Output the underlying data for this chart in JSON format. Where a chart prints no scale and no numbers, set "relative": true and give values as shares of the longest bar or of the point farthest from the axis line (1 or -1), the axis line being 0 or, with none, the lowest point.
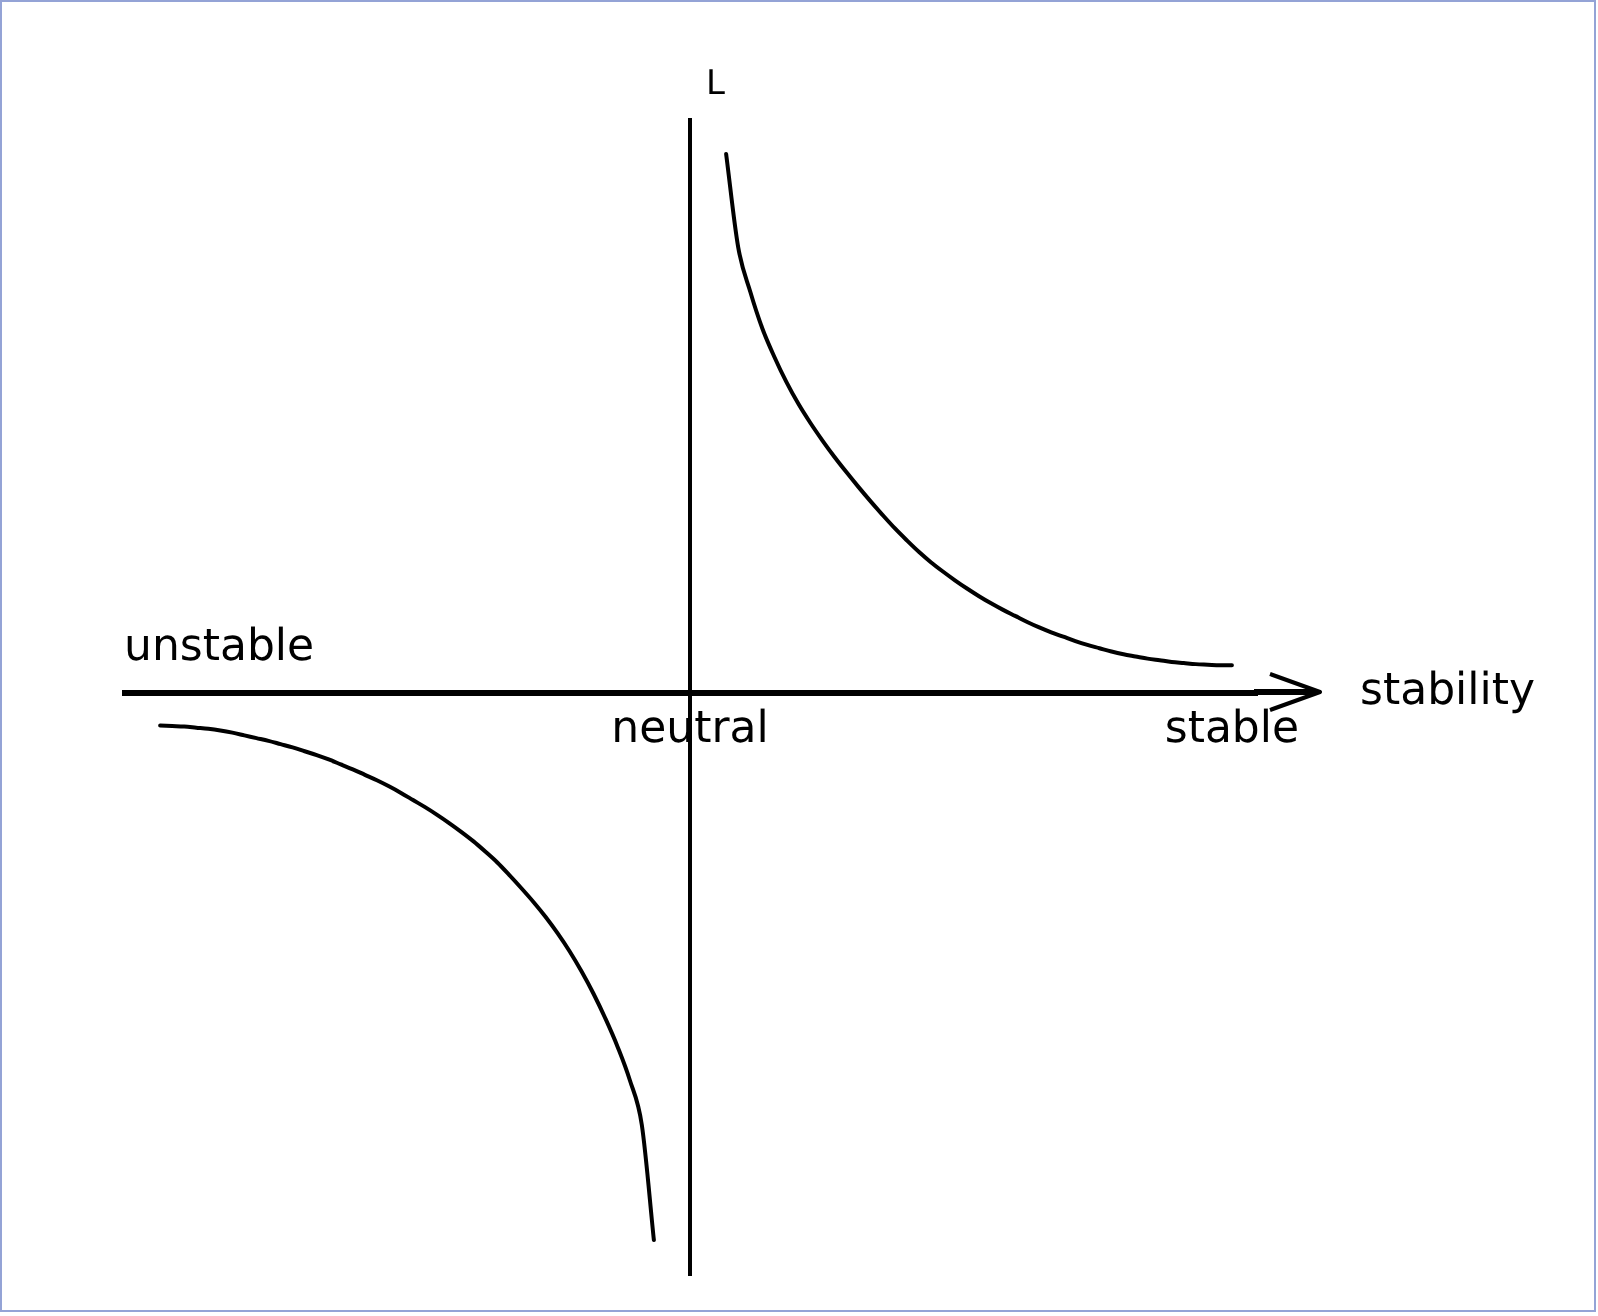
{
  "chart_data": {
    "type": "line",
    "relative": true,
    "xlabel": "stability",
    "ylabel": "L",
    "annotations": [
      "unstable"
    ],
    "color": "#000000",
    "categories": [
      null,
      null,
      null,
      null,
      null,
      null,
      null,
      null,
      null,
      null,
      null,
      null,
      null,
      null,
      null,
      null,
      null,
      null,
      null,
      null,
      null,
      null,
      null,
      null,
      null,
      null,
      null,
      null,
      null,
      null,
      null,
      null,
      null,
      null,
      null,
      null,
      null,
      null,
      null,
      null,
      null,
      null,
      null,
      null,
      null,
      null,
      null,
      "neutral",
      null,
      null,
      null,
      null,
      null,
      null,
      null,
      null,
      null,
      null,
      null,
      null,
      null,
      null,
      null,
      null,
      null,
      null,
      null,
      null,
      null,
      null,
      null,
      null,
      null,
      null,
      null,
      null,
      null,
      null,
      null,
      null,
      null,
      null,
      null,
      null,
      null,
      null,
      null,
      null,
      null,
      null,
      null,
      null,
      "stable",
      null,
      null
    ],
    "values": [
      null,
      null,
      null,
      -0.061,
      -0.062,
      -0.063,
      -0.065,
      -0.067,
      -0.07,
      -0.074,
      -0.079,
      -0.084,
      -0.089,
      -0.095,
      -0.101,
      -0.108,
      -0.115,
      -0.123,
      -0.132,
      -0.141,
      -0.151,
      -0.161,
      -0.172,
      -0.184,
      -0.197,
      -0.21,
      -0.224,
      -0.239,
      -0.255,
      -0.272,
      -0.291,
      -0.311,
      -0.334,
      -0.358,
      -0.383,
      -0.41,
      -0.44,
      -0.473,
      -0.51,
      -0.551,
      -0.597,
      -0.648,
      -0.708,
      -0.79,
      -1,
      null,
      null,
      null,
      null,
      null,
      0.982,
      0.812,
      0.731,
      0.664,
      0.612,
      0.566,
      0.526,
      0.491,
      0.459,
      0.429,
      0.401,
      0.374,
      0.348,
      0.323,
      0.299,
      0.277,
      0.256,
      0.237,
      0.22,
      0.204,
      0.189,
      0.175,
      0.162,
      0.15,
      0.139,
      0.128,
      0.118,
      0.109,
      0.101,
      0.093,
      0.086,
      0.08,
      0.074,
      0.069,
      0.065,
      0.061,
      0.058,
      0.055,
      0.053,
      0.051,
      0.05,
      0.049,
      0.049,
      null,
      null
    ]
  }
}
